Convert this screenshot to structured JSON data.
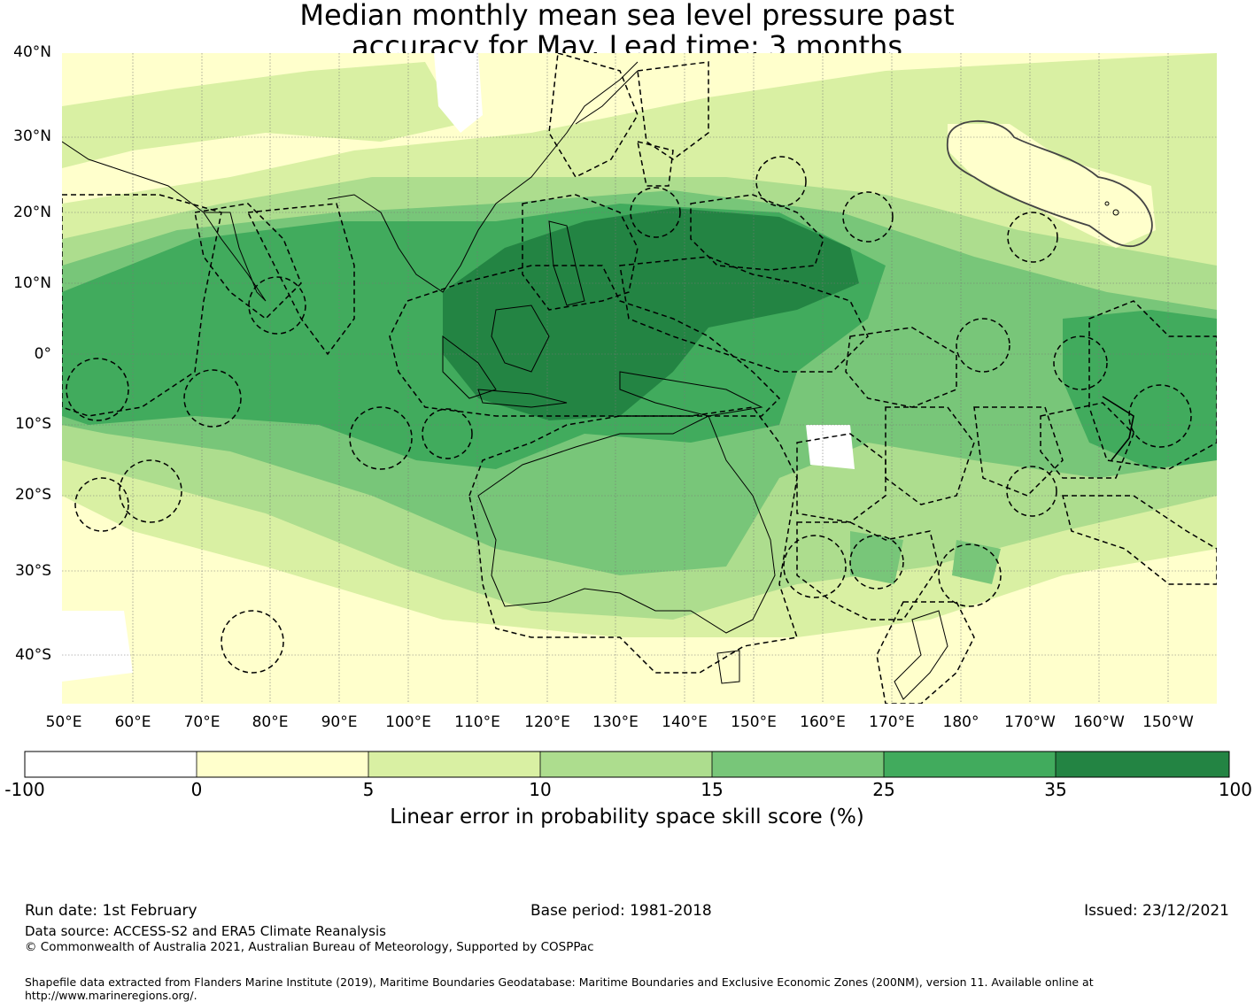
{
  "title_line1": "Median monthly mean sea level pressure past",
  "title_line2": "accuracy for May. Lead time: 3 months",
  "lat_labels": [
    "40°N",
    "30°N",
    "20°N",
    "10°N",
    "0°",
    "10°S",
    "20°S",
    "30°S",
    "40°S"
  ],
  "lon_labels": [
    "50°E",
    "60°E",
    "70°E",
    "80°E",
    "90°E",
    "100°E",
    "110°E",
    "120°E",
    "130°E",
    "140°E",
    "150°E",
    "160°E",
    "170°E",
    "180°",
    "170°W",
    "160°W",
    "150°W"
  ],
  "colorbar": {
    "title": "Linear error in probability space skill score (%)",
    "ticks": [
      "-100",
      "0",
      "5",
      "10",
      "15",
      "25",
      "35",
      "100"
    ],
    "colors": [
      "#ffffff",
      "#ffffcc",
      "#d9f0a3",
      "#addd8e",
      "#78c679",
      "#41ab5d",
      "#238443"
    ]
  },
  "footer": {
    "run_date": "Run date: 1st February",
    "base_period": "Base period: 1981-2018",
    "issued": "Issued: 23/12/2021",
    "data_source": "Data source: ACCESS-S2 and ERA5 Climate Reanalysis",
    "copyright": "© Commonwealth of Australia 2021, Australian Bureau of Meteorology, Supported by COSPPac",
    "shapefile": "Shapefile data extracted from Flanders Marine Institute (2019), Maritime Boundaries Geodatabase: Maritime Boundaries and Exclusive Economic Zones (200NM), version 11. Available online at http://www.marineregions.org/."
  }
}
